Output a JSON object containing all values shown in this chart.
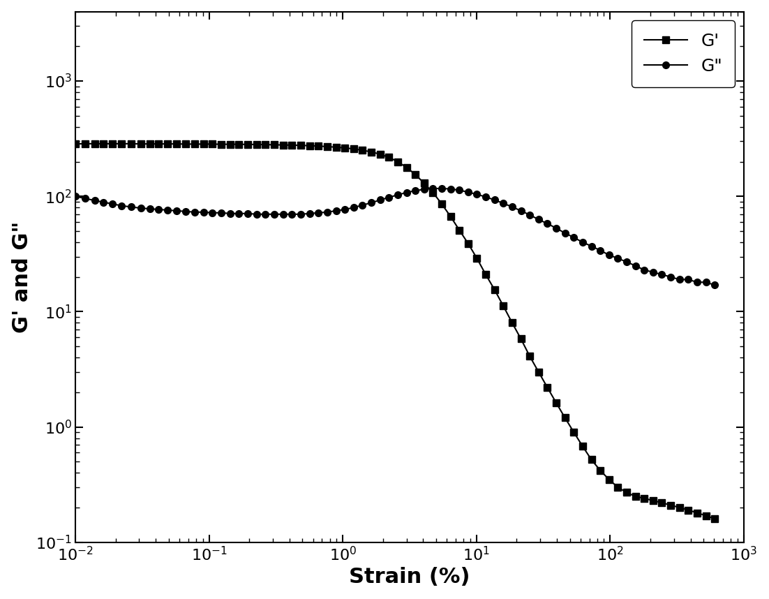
{
  "title": "",
  "xlabel": "Strain (%)",
  "ylabel": "G' and G\"",
  "line_color": "#000000",
  "marker_color": "#000000",
  "legend_labels": [
    "G'",
    "G\""
  ],
  "G_prime": {
    "strain": [
      0.01,
      0.0118,
      0.014,
      0.0162,
      0.019,
      0.022,
      0.026,
      0.031,
      0.036,
      0.042,
      0.049,
      0.057,
      0.067,
      0.078,
      0.091,
      0.106,
      0.123,
      0.144,
      0.167,
      0.195,
      0.227,
      0.264,
      0.308,
      0.358,
      0.417,
      0.486,
      0.565,
      0.658,
      0.766,
      0.892,
      1.038,
      1.208,
      1.406,
      1.636,
      1.904,
      2.216,
      2.578,
      3.0,
      3.49,
      4.06,
      4.73,
      5.5,
      6.4,
      7.45,
      8.67,
      10.09,
      11.74,
      13.67,
      15.9,
      18.51,
      21.54,
      25.07,
      29.18,
      33.96,
      39.52,
      46.0,
      53.54,
      62.3,
      72.52,
      84.4,
      98.24,
      114.3,
      133.0,
      154.8,
      180.2,
      209.7,
      244.0,
      283.9,
      330.5,
      384.7,
      447.7,
      521.0,
      606.5
    ],
    "G": [
      285,
      286,
      286,
      286,
      286,
      286,
      286,
      285,
      285,
      285,
      285,
      285,
      284,
      284,
      284,
      284,
      283,
      283,
      283,
      282,
      282,
      281,
      280,
      279,
      278,
      277,
      275,
      273,
      270,
      267,
      263,
      258,
      251,
      243,
      232,
      218,
      200,
      178,
      155,
      130,
      108,
      86,
      67,
      51,
      39,
      29,
      21,
      15.5,
      11.2,
      8.0,
      5.8,
      4.1,
      3.0,
      2.2,
      1.62,
      1.2,
      0.9,
      0.68,
      0.52,
      0.42,
      0.35,
      0.3,
      0.27,
      0.25,
      0.24,
      0.23,
      0.22,
      0.21,
      0.2,
      0.19,
      0.18,
      0.17,
      0.16
    ]
  },
  "G_double_prime": {
    "strain": [
      0.01,
      0.0118,
      0.014,
      0.0162,
      0.019,
      0.022,
      0.026,
      0.031,
      0.036,
      0.042,
      0.049,
      0.057,
      0.067,
      0.078,
      0.091,
      0.106,
      0.123,
      0.144,
      0.167,
      0.195,
      0.227,
      0.264,
      0.308,
      0.358,
      0.417,
      0.486,
      0.565,
      0.658,
      0.766,
      0.892,
      1.038,
      1.208,
      1.406,
      1.636,
      1.904,
      2.216,
      2.578,
      3.0,
      3.49,
      4.06,
      4.73,
      5.5,
      6.4,
      7.45,
      8.67,
      10.09,
      11.74,
      13.67,
      15.9,
      18.51,
      21.54,
      25.07,
      29.18,
      33.96,
      39.52,
      46.0,
      53.54,
      62.3,
      72.52,
      84.4,
      98.24,
      114.3,
      133.0,
      154.8,
      180.2,
      209.7,
      244.0,
      283.9,
      330.5,
      384.7,
      447.7,
      521.0,
      606.5
    ],
    "G": [
      100,
      96,
      92,
      89,
      86,
      83,
      81,
      79,
      78,
      77,
      76,
      75,
      74,
      73,
      73,
      72,
      72,
      71,
      71,
      71,
      70,
      70,
      70,
      70,
      70,
      70,
      71,
      72,
      73,
      75,
      77,
      80,
      84,
      88,
      93,
      98,
      103,
      108,
      112,
      115,
      117,
      117,
      116,
      113,
      109,
      104,
      99,
      93,
      87,
      81,
      75,
      69,
      63,
      58,
      53,
      48,
      44,
      40,
      37,
      34,
      31,
      29,
      27,
      25,
      23,
      22,
      21,
      20,
      19,
      19,
      18,
      18,
      17
    ]
  },
  "background_color": "#ffffff",
  "tick_fontsize": 16,
  "label_fontsize": 22,
  "legend_fontsize": 18,
  "linewidth": 1.5,
  "markersize": 7
}
